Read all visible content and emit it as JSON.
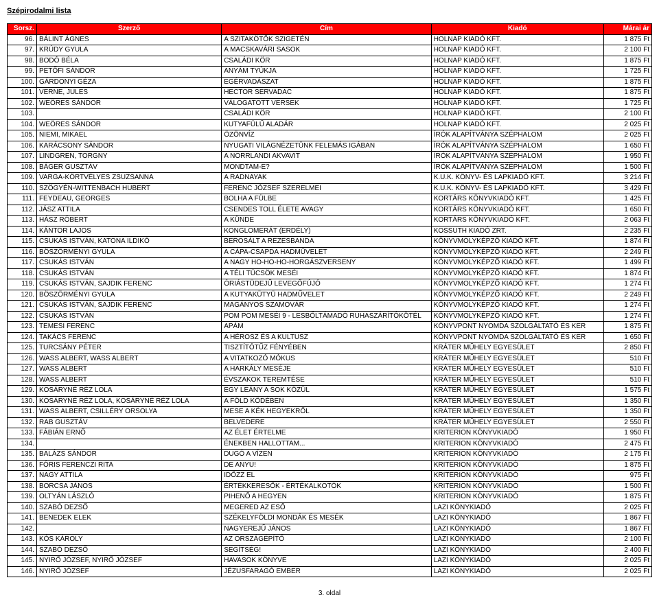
{
  "page": {
    "title": "Szépirodalmi lista",
    "footer": "3. oldal"
  },
  "table": {
    "header": {
      "bg_color": "#ff0000",
      "text_color": "#ffffff",
      "cols": [
        "Sorsz.",
        "Szerző",
        "Cím",
        "Kiadó",
        "Márai ár"
      ]
    },
    "col_widths_pct": [
      4,
      29,
      33,
      27,
      7
    ],
    "rows": [
      [
        "96.",
        "BÁLINT ÁGNES",
        "A SZITAKÖTŐK SZIGETÉN",
        "HOLNAP KIADÓ KFT.",
        "1 875 Ft"
      ],
      [
        "97.",
        "KRÚDY GYULA",
        "A MACSKAVÁRI SASOK",
        "HOLNAP KIADÓ KFT.",
        "2 100 Ft"
      ],
      [
        "98.",
        "BODÓ BÉLA",
        "CSALÁDI KÖR",
        "HOLNAP KIADÓ KFT.",
        "1 875 Ft"
      ],
      [
        "99.",
        "PETŐFI SÁNDOR",
        "ANYÁM TYÚKJA",
        "HOLNAP KIADÓ KFT.",
        "1 725 Ft"
      ],
      [
        "100.",
        "GÁRDONYI GÉZA",
        "EGÉRVADÁSZAT",
        "HOLNAP KIADÓ KFT.",
        "1 875 Ft"
      ],
      [
        "101.",
        "VERNE, JULES",
        "HECTOR SERVADAC",
        "HOLNAP KIADÓ KFT.",
        "1 875 Ft"
      ],
      [
        "102.",
        "WEÖRES SÁNDOR",
        "VÁLOGATOTT VERSEK",
        "HOLNAP KIADÓ KFT.",
        "1 725 Ft"
      ],
      [
        "103.",
        "",
        "CSALÁDI KÖR",
        "HOLNAP KIADÓ KFT.",
        "2 100 Ft"
      ],
      [
        "104.",
        "WEÖRES SÁNDOR",
        "KUTYAFÜLŰ ALADÁR",
        "HOLNAP KIADÓ KFT.",
        "2 025 Ft"
      ],
      [
        "105.",
        "NIEMI, MIKAEL",
        "ÖZÖNVÍZ",
        "ÍRÓK ALAPÍTVÁNYA SZÉPHALOM",
        "2 025 Ft"
      ],
      [
        "106.",
        "KARÁCSONY SÁNDOR",
        "NYUGATI VILÁGNÉZETÜNK FELEMÁS IGÁBAN",
        "ÍRÓK ALAPÍTVÁNYA SZÉPHALOM",
        "1 650 Ft"
      ],
      [
        "107.",
        "LINDGREN, TORGNY",
        "A NORRLANDI AKVAVIT",
        "ÍRÓK ALAPÍTVÁNYA SZÉPHALOM",
        "1 950 Ft"
      ],
      [
        "108.",
        "BÁGER GUSZTÁV",
        "MONDTAM-E?",
        "ÍRÓK ALAPÍTVÁNYA SZÉPHALOM",
        "1 500 Ft"
      ],
      [
        "109.",
        "VARGA-KÖRTVÉLYES ZSUZSANNA",
        "A RADNAYAK",
        "K.U.K. KÖNYV- ÉS LAPKIADÓ KFT.",
        "3 214 Ft"
      ],
      [
        "110.",
        "SZÖGYÉN-WITTENBACH HUBERT",
        "FERENC JÓZSEF SZERELMEI",
        "K.U.K. KÖNYV- ÉS LAPKIADÓ KFT.",
        "3 429 Ft"
      ],
      [
        "111.",
        "FEYDEAU, GEORGES",
        "BOLHA A FÜLBE",
        "KORTÁRS KÖNYVKIADÓ KFT.",
        "1 425 Ft"
      ],
      [
        "112.",
        "JÁSZ ATTILA",
        "CSENDES TOLL ÉLETE AVAGY",
        "KORTÁRS KÖNYVKIADÓ KFT.",
        "1 650 Ft"
      ],
      [
        "113.",
        "HÁSZ RÓBERT",
        "A KÜNDE",
        "KORTÁRS KÖNYVKIADÓ KFT.",
        "2 063 Ft"
      ],
      [
        "114.",
        "KÁNTOR LAJOS",
        "KONGLOMERÁT (ERDÉLY)",
        "KOSSUTH KIADÓ ZRT.",
        "2 235 Ft"
      ],
      [
        "115.",
        "CSUKÁS ISTVÁN, KATONA ILDIKÓ",
        "BEROSÁLT A REZESBANDA",
        "KÖNYVMOLYKÉPZŐ KIADÓ KFT.",
        "1 874 Ft"
      ],
      [
        "116.",
        "BÖSZÖRMÉNYI GYULA",
        "A CÁPA-CSAPDA HADMŰVELET",
        "KÖNYVMOLYKÉPZŐ KIADÓ KFT.",
        "2 249 Ft"
      ],
      [
        "117.",
        "CSUKÁS ISTVÁN",
        "A NAGY HO-HO-HO-HORGÁSZVERSENY",
        "KÖNYVMOLYKÉPZŐ KIADÓ KFT.",
        "1 499 Ft"
      ],
      [
        "118.",
        "CSUKÁS ISTVÁN",
        "A TÉLI TÜCSÖK MESÉI",
        "KÖNYVMOLYKÉPZŐ KIADÓ KFT.",
        "1 874 Ft"
      ],
      [
        "119.",
        "CSUKÁS ISTVÁN, SAJDIK FERENC",
        "ÓRIÁSTÜDEJŰ LEVEGŐFÚJÓ",
        "KÖNYVMOLYKÉPZŐ KIADÓ KFT.",
        "1 274 Ft"
      ],
      [
        "120.",
        "BÖSZÖRMÉNYI GYULA",
        "A KUTYAKÜTYÜ HADMŰVELET",
        "KÖNYVMOLYKÉPZŐ KIADÓ KFT.",
        "2 249 Ft"
      ],
      [
        "121.",
        "CSUKÁS ISTVÁN, SAJDIK FERENC",
        "MAGÁNYOS SZAMOVÁR",
        "KÖNYVMOLYKÉPZŐ KIADÓ KFT.",
        "1 274 Ft"
      ],
      [
        "122.",
        "CSUKÁS ISTVÁN",
        "POM POM MESÉI 9 - LESBŐLTÁMADÓ RUHASZÁRÍTÓKÖTÉL",
        "KÖNYVMOLYKÉPZŐ KIADÓ KFT.",
        "1 274 Ft"
      ],
      [
        "123.",
        "TEMESI FERENC",
        "APÁM",
        "KÖNYVPONT NYOMDA SZOLGÁLTATÓ ÉS KER",
        "1 875 Ft"
      ],
      [
        "124.",
        "TAKÁCS FERENC",
        "A HÉROSZ ÉS A KULTUSZ",
        "KÖNYVPONT NYOMDA SZOLGÁLTATÓ ÉS KER",
        "1 650 Ft"
      ],
      [
        "125.",
        "TURCSÁNY PÉTER",
        "TISZTÍTÓTŰZ FÉNYÉBEN",
        "KRÁTER MŰHELY EGYESÜLET",
        "2 850 Ft"
      ],
      [
        "126.",
        "WASS ALBERT, WASS ALBERT",
        "A VITATKOZÓ MÓKUS",
        "KRÁTER MŰHELY EGYESÜLET",
        "510 Ft"
      ],
      [
        "127.",
        "WASS ALBERT",
        "A HARKÁLY MESÉJE",
        "KRÁTER MŰHELY EGYESÜLET",
        "510 Ft"
      ],
      [
        "128.",
        "WASS ALBERT",
        "ÉVSZAKOK TEREMTÉSE",
        "KRÁTER MŰHELY EGYESÜLET",
        "510 Ft"
      ],
      [
        "129.",
        "KOSÁRYNÉ RÉZ LOLA",
        "EGY LEÁNY A SOK KÖZÜL",
        "KRÁTER MŰHELY EGYESÜLET",
        "1 575 Ft"
      ],
      [
        "130.",
        "KOSÁRYNÉ RÉZ LOLA, KOSÁRYNÉ RÉZ LOLA",
        "A FÖLD KÖDÉBEN",
        "KRÁTER MŰHELY EGYESÜLET",
        "1 350 Ft"
      ],
      [
        "131.",
        "WASS ALBERT, CSILLÉRY ORSOLYA",
        "MESE A KÉK HEGYEKRŐL",
        "KRÁTER MŰHELY EGYESÜLET",
        "1 350 Ft"
      ],
      [
        "132.",
        "RAB GUSZTÁV",
        "BELVEDERE",
        "KRÁTER MŰHELY EGYESÜLET",
        "2 550 Ft"
      ],
      [
        "133.",
        "FÁBIÁN ERNŐ",
        "AZ ÉLET ÉRTELME",
        "KRITERION KÖNYVKIADÓ",
        "1 950 Ft"
      ],
      [
        "134.",
        "",
        "ÉNEKBEN HALLOTTAM...",
        "KRITERION KÖNYVKIADÓ",
        "2 475 Ft"
      ],
      [
        "135.",
        "BALÁZS SÁNDOR",
        "DUGÓ A VÍZEN",
        "KRITERION KÖNYVKIADÓ",
        "2 175 Ft"
      ],
      [
        "136.",
        "FÓRIS FERENCZI RITA",
        "DE ANYU!",
        "KRITERION KÖNYVKIADÓ",
        "1 875 Ft"
      ],
      [
        "137.",
        "NAGY ATTILA",
        "IDŐZZ EL",
        "KRITERION KÖNYVKIADÓ",
        "975 Ft"
      ],
      [
        "138.",
        "BORCSA JÁNOS",
        "ÉRTÉKKERESŐK - ÉRTÉKALKOTÓK",
        "KRITERION KÖNYVKIADÓ",
        "1 500 Ft"
      ],
      [
        "139.",
        "OLTYÁN LÁSZLÓ",
        "PIHENŐ A HEGYEN",
        "KRITERION KÖNYVKIADÓ",
        "1 875 Ft"
      ],
      [
        "140.",
        "SZABÓ DEZSŐ",
        "MEGERED AZ ESŐ",
        "LAZI KÖNYKIADÓ",
        "2 025 Ft"
      ],
      [
        "141.",
        "BENEDEK ELEK",
        "SZÉKELYFÖLDI MONDÁK ÉS MESÉK",
        "LAZI KÖNYKIADÓ",
        "1 867 Ft"
      ],
      [
        "142.",
        "",
        "NAGYEREJŰ JÁNOS",
        "LAZI KÖNYKIADÓ",
        "1 867 Ft"
      ],
      [
        "143.",
        "KÓS KÁROLY",
        "AZ ORSZÁGÉPÍTŐ",
        "LAZI KÖNYKIADÓ",
        "2 100 Ft"
      ],
      [
        "144.",
        "SZABÓ DEZSŐ",
        "SEGÍTSÉG!",
        "LAZI KÖNYKIADÓ",
        "2 400 Ft"
      ],
      [
        "145.",
        "NYIRŐ JÓZSEF, NYIRŐ JÓZSEF",
        "HAVASOK KÖNYVE",
        "LAZI KÖNYKIADÓ",
        "2 025 Ft"
      ],
      [
        "146.",
        "NYIRŐ JÓZSEF",
        "JÉZUSFARAGÓ EMBER",
        "LAZI KÖNYKIADÓ",
        "2 025 Ft"
      ]
    ]
  }
}
